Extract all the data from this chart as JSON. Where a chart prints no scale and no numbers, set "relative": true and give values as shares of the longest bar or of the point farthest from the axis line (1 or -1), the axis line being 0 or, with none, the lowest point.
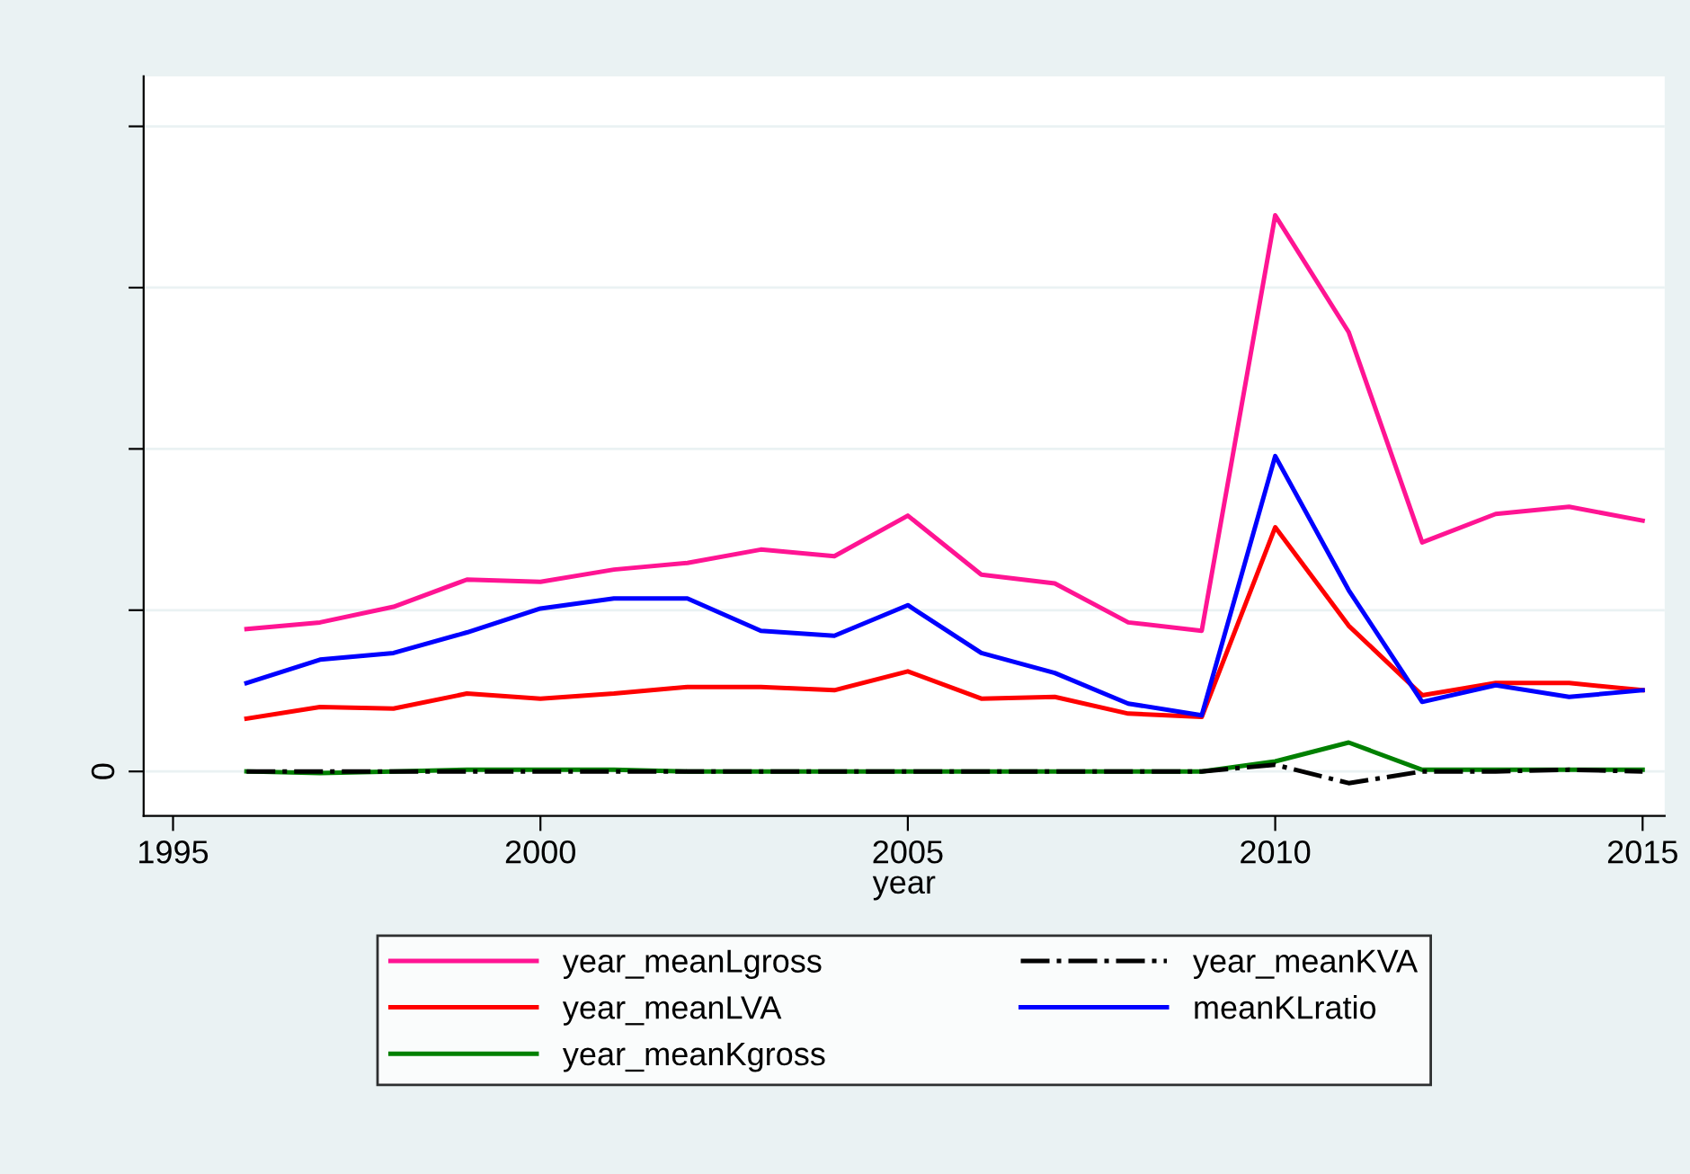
{
  "chart_data": {
    "type": "line",
    "relative": true,
    "xlabel": "year",
    "x": [
      1996,
      1997,
      1998,
      1999,
      2000,
      2001,
      2002,
      2003,
      2004,
      2005,
      2006,
      2007,
      2008,
      2009,
      2010,
      2011,
      2012,
      2013,
      2014,
      2015
    ],
    "xlim": [
      1994.6,
      2015.3
    ],
    "xticks": [
      1995,
      2000,
      2005,
      2010,
      2015
    ],
    "series": [
      {
        "name": "year_meanLgross",
        "color": "#ff1493",
        "values": [
          0.256,
          0.268,
          0.296,
          0.345,
          0.341,
          0.363,
          0.375,
          0.399,
          0.387,
          0.46,
          0.354,
          0.338,
          0.268,
          0.253,
          1,
          0.79,
          0.412,
          0.463,
          0.476,
          0.451
        ]
      },
      {
        "name": "year_meanLVA",
        "color": "#ff0000",
        "values": [
          0.095,
          0.116,
          0.113,
          0.14,
          0.131,
          0.14,
          0.152,
          0.152,
          0.146,
          0.18,
          0.131,
          0.134,
          0.104,
          0.098,
          0.439,
          0.262,
          0.137,
          0.159,
          0.159,
          0.146
        ]
      },
      {
        "name": "year_meanKgross",
        "color": "#008000",
        "values": [
          0,
          -0.003,
          0,
          0.003,
          0.003,
          0.003,
          0,
          0,
          0,
          0,
          0,
          0,
          0,
          0,
          0.018,
          0.052,
          0.003,
          0.003,
          0.003,
          0.003
        ]
      },
      {
        "name": "year_meanKVA",
        "color": "#000000",
        "line_style": "dashdot",
        "values": [
          0,
          0,
          0,
          0,
          0,
          0,
          0,
          0,
          0,
          0,
          0,
          0,
          0,
          0,
          0.012,
          -0.021,
          0,
          0,
          0.003,
          0
        ]
      },
      {
        "name": "meanKLratio",
        "color": "#0000ff",
        "values": [
          0.159,
          0.201,
          0.213,
          0.25,
          0.293,
          0.311,
          0.311,
          0.253,
          0.244,
          0.299,
          0.213,
          0.177,
          0.122,
          0.101,
          0.567,
          0.326,
          0.125,
          0.155,
          0.134,
          0.146
        ]
      }
    ],
    "annotations": [
      "0"
    ],
    "grid": "y",
    "legend": "bottom",
    "marker": "none"
  }
}
